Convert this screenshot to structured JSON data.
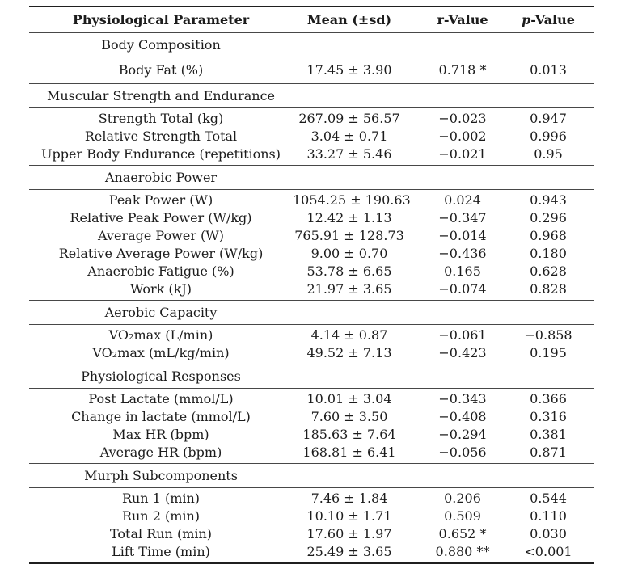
{
  "colors": {
    "text": "#1c1c1c",
    "rule_thin": "#474747",
    "rule_thick": "#1f1f1f",
    "background": "#ffffff"
  },
  "table": {
    "headers": {
      "parameter": "Physiological Parameter",
      "mean": "Mean (±sd)",
      "r": "r-Value",
      "p_italic": "p",
      "p_rest": "-Value"
    },
    "sections": [
      {
        "title": "Body Composition",
        "rows": [
          {
            "param": "Body Fat (%)",
            "mean": "17.45 ± 3.90",
            "r": "0.718 *",
            "p": "0.013"
          }
        ]
      },
      {
        "title": "Muscular Strength and Endurance",
        "rows": [
          {
            "param": "Strength Total (kg)",
            "mean": "267.09 ± 56.57",
            "r": "−0.023",
            "p": "0.947"
          },
          {
            "param": "Relative Strength Total",
            "mean": "3.04 ± 0.71",
            "r": "−0.002",
            "p": "0.996"
          },
          {
            "param": "Upper Body Endurance (repetitions)",
            "mean": "33.27 ± 5.46",
            "r": "−0.021",
            "p": "0.95"
          }
        ]
      },
      {
        "title": "Anaerobic Power",
        "rows": [
          {
            "param": "Peak Power (W)",
            "mean": "1054.25 ± 190.63",
            "r": "0.024",
            "p": "0.943"
          },
          {
            "param": "Relative Peak Power (W/kg)",
            "mean": "12.42 ± 1.13",
            "r": "−0.347",
            "p": "0.296"
          },
          {
            "param": "Average Power (W)",
            "mean": "765.91 ± 128.73",
            "r": "−0.014",
            "p": "0.968"
          },
          {
            "param": "Relative Average Power (W/kg)",
            "mean": "9.00 ± 0.70",
            "r": "−0.436",
            "p": "0.180"
          },
          {
            "param": "Anaerobic Fatigue (%)",
            "mean": "53.78 ± 6.65",
            "r": "0.165",
            "p": "0.628"
          },
          {
            "param": "Work (kJ)",
            "mean": "21.97 ± 3.65",
            "r": "−0.074",
            "p": "0.828"
          }
        ]
      },
      {
        "title": "Aerobic Capacity",
        "rows": [
          {
            "param": "VO₂max (L/min)",
            "mean": "4.14 ± 0.87",
            "r": "−0.061",
            "p": "−0.858"
          },
          {
            "param": "VO₂max (mL/kg/min)",
            "mean": "49.52 ± 7.13",
            "r": "−0.423",
            "p": "0.195"
          }
        ]
      },
      {
        "title": "Physiological Responses",
        "rows": [
          {
            "param": "Post Lactate (mmol/L)",
            "mean": "10.01 ± 3.04",
            "r": "−0.343",
            "p": "0.366"
          },
          {
            "param": "Change in lactate (mmol/L)",
            "mean": "7.60 ± 3.50",
            "r": "−0.408",
            "p": "0.316"
          },
          {
            "param": "Max HR (bpm)",
            "mean": "185.63 ± 7.64",
            "r": "−0.294",
            "p": "0.381"
          },
          {
            "param": "Average HR (bpm)",
            "mean": "168.81 ± 6.41",
            "r": "−0.056",
            "p": "0.871"
          }
        ]
      },
      {
        "title": "Murph Subcomponents",
        "rows": [
          {
            "param": "Run 1 (min)",
            "mean": "7.46 ± 1.84",
            "r": "0.206",
            "p": "0.544"
          },
          {
            "param": "Run 2 (min)",
            "mean": "10.10 ± 1.71",
            "r": "0.509",
            "p": "0.110"
          },
          {
            "param": "Total Run (min)",
            "mean": "17.60 ± 1.97",
            "r": "0.652 *",
            "p": "0.030"
          },
          {
            "param": "Lift Time (min)",
            "mean": "25.49 ± 3.65",
            "r": "0.880 **",
            "p": "<0.001"
          }
        ]
      }
    ]
  }
}
